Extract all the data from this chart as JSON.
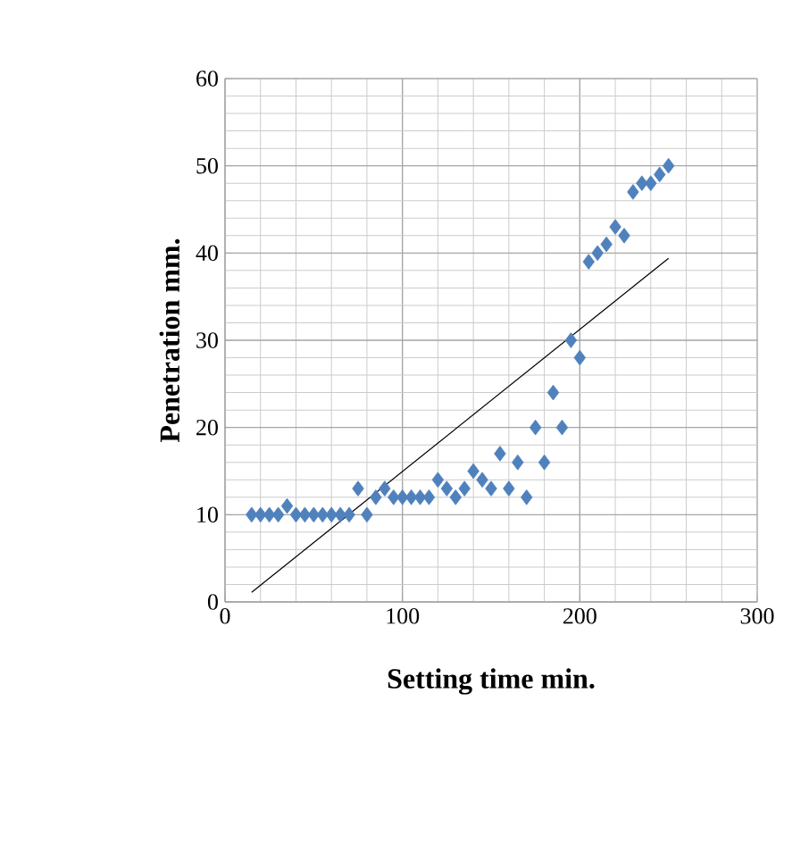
{
  "chart_data": {
    "type": "scatter",
    "xlabel": "Setting time min.",
    "ylabel": "Penetration mm.",
    "xlim": [
      0,
      300
    ],
    "ylim": [
      0,
      60
    ],
    "xticks": [
      0,
      100,
      200,
      300
    ],
    "yticks": [
      0,
      10,
      20,
      30,
      40,
      50,
      60
    ],
    "grid": true,
    "marker": "diamond",
    "series": [
      {
        "color": "#4f81bd",
        "x": [
          15,
          20,
          25,
          30,
          35,
          40,
          45,
          50,
          55,
          60,
          65,
          70,
          75,
          80,
          85,
          90,
          95,
          100,
          105,
          110,
          115,
          120,
          125,
          130,
          135,
          140,
          145,
          150,
          155,
          160,
          165,
          170,
          175,
          180,
          185,
          190,
          195,
          200,
          205,
          210,
          215,
          220,
          225,
          230,
          235,
          240,
          245,
          250
        ],
        "values": [
          10,
          10,
          10,
          10,
          11,
          10,
          10,
          10,
          10,
          10,
          10,
          10,
          13,
          10,
          12,
          13,
          12,
          12,
          12,
          12,
          12,
          14,
          13,
          12,
          13,
          15,
          14,
          13,
          17,
          13,
          16,
          12,
          20,
          16,
          24,
          20,
          30,
          28,
          39,
          40,
          41,
          43,
          42,
          47,
          48,
          48,
          49,
          50
        ]
      },
      {
        "type": "line",
        "color": "#000000",
        "marker": "none",
        "x": [
          15,
          250
        ],
        "values": [
          1.1,
          39.4
        ]
      }
    ]
  }
}
